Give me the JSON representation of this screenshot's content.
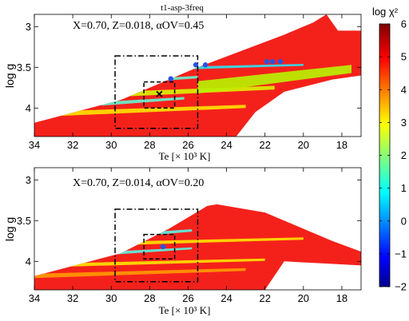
{
  "chart_data": [
    {
      "type": "scatter",
      "title": "t1-asp-3freq",
      "annotation": "X=0.70, Z=0.018, αOV=0.45",
      "xlabel": "Te [× 10³ K]",
      "ylabel": "log g",
      "xlim": [
        34,
        17
      ],
      "ylim": [
        4.35,
        2.85
      ],
      "xticks": [
        "34",
        "32",
        "30",
        "28",
        "26",
        "24",
        "22",
        "20",
        "18"
      ],
      "yticks": [
        "3",
        "3.5",
        "4"
      ],
      "grid": false,
      "colormap": "jet",
      "color_variable": "log χ²",
      "region_shape": [
        [
          34,
          4.35
        ],
        [
          34,
          4.18
        ],
        [
          29.5,
          3.9
        ],
        [
          25.5,
          3.5
        ],
        [
          21,
          3.1
        ],
        [
          19.5,
          2.95
        ],
        [
          18.8,
          2.85
        ],
        [
          18.2,
          3.05
        ],
        [
          17.8,
          3.05
        ],
        [
          17,
          3.05
        ],
        [
          17,
          3.6
        ],
        [
          18.5,
          3.65
        ],
        [
          21,
          3.8
        ],
        [
          22.5,
          4.05
        ],
        [
          23.5,
          4.35
        ]
      ],
      "bands": [
        {
          "y": 3.47,
          "color": "#2fe0f0",
          "x_from": 29,
          "x_to": 20,
          "width": 0.05
        },
        {
          "y": 3.62,
          "color": "#66f2d0",
          "x_from": 30.2,
          "x_to": 25.5,
          "width": 0.06
        },
        {
          "y": 3.75,
          "color": "#d8f000",
          "x_from": 31.8,
          "x_to": 21.5,
          "width": 0.09
        },
        {
          "y": 3.88,
          "color": "#66f2d0",
          "x_from": 30.5,
          "x_to": 26.2,
          "width": 0.06
        },
        {
          "y": 3.98,
          "color": "#ffe000",
          "x_from": 33,
          "x_to": 23,
          "width": 0.08
        },
        {
          "y": 3.52,
          "color": "#b8f000",
          "x_from": 25.5,
          "x_to": 17.5,
          "width": 0.2
        }
      ],
      "best_points": [
        {
          "x": 26.9,
          "y": 3.64
        },
        {
          "x": 25.6,
          "y": 3.47
        },
        {
          "x": 25.1,
          "y": 3.47
        },
        {
          "x": 21.6,
          "y": 3.43
        },
        {
          "x": 21.2,
          "y": 3.43
        },
        {
          "x": 21.9,
          "y": 3.43
        }
      ],
      "outer_box": {
        "x": [
          29.8,
          25.5
        ],
        "y": [
          3.36,
          4.25
        ]
      },
      "inner_box": {
        "x": [
          28.3,
          26.7
        ],
        "y": [
          3.68,
          4.0
        ]
      },
      "marker": {
        "label": "×",
        "x": 27.5,
        "y": 3.83
      }
    },
    {
      "type": "scatter",
      "title": "",
      "annotation": "X=0.70, Z=0.014, αOV=0.20",
      "xlabel": "Te [× 10³ K]",
      "ylabel": "log g",
      "xlim": [
        34,
        17
      ],
      "ylim": [
        4.35,
        2.85
      ],
      "xticks": [
        "34",
        "32",
        "30",
        "28",
        "26",
        "24",
        "22",
        "20",
        "18"
      ],
      "yticks": [
        "3",
        "3.5",
        "4"
      ],
      "grid": false,
      "colormap": "jet",
      "color_variable": "log χ²",
      "region_shape": [
        [
          34,
          4.35
        ],
        [
          34,
          4.18
        ],
        [
          29.5,
          3.9
        ],
        [
          27,
          3.6
        ],
        [
          25,
          3.32
        ],
        [
          24.5,
          3.3
        ],
        [
          22,
          3.4
        ],
        [
          18.5,
          3.75
        ],
        [
          17,
          3.88
        ],
        [
          17,
          4.05
        ],
        [
          21,
          4.0
        ],
        [
          22,
          4.35
        ]
      ],
      "bands": [
        {
          "y": 3.62,
          "color": "#5ef0e0",
          "x_from": 29.5,
          "x_to": 25.8,
          "width": 0.06
        },
        {
          "y": 3.84,
          "color": "#5ef0e0",
          "x_from": 29.8,
          "x_to": 25.8,
          "width": 0.05
        },
        {
          "y": 3.72,
          "color": "#ffe000",
          "x_from": 31,
          "x_to": 20,
          "width": 0.06
        },
        {
          "y": 3.98,
          "color": "#ffe000",
          "x_from": 33,
          "x_to": 22,
          "width": 0.06
        },
        {
          "y": 4.1,
          "color": "#ff9800",
          "x_from": 34,
          "x_to": 23,
          "width": 0.07
        }
      ],
      "best_points": [
        {
          "x": 27.3,
          "y": 3.82
        }
      ],
      "outer_box": {
        "x": [
          29.8,
          25.5
        ],
        "y": [
          3.36,
          4.25
        ]
      },
      "inner_box": {
        "x": [
          28.3,
          26.7
        ],
        "y": [
          3.67,
          3.97
        ]
      }
    }
  ],
  "colorbar": {
    "label": "log χ²",
    "ticks": [
      "6",
      "5",
      "4",
      "3",
      "2",
      "1",
      "0",
      "−1",
      "−2"
    ],
    "min": -2,
    "max": 6,
    "colormap": "jet"
  }
}
